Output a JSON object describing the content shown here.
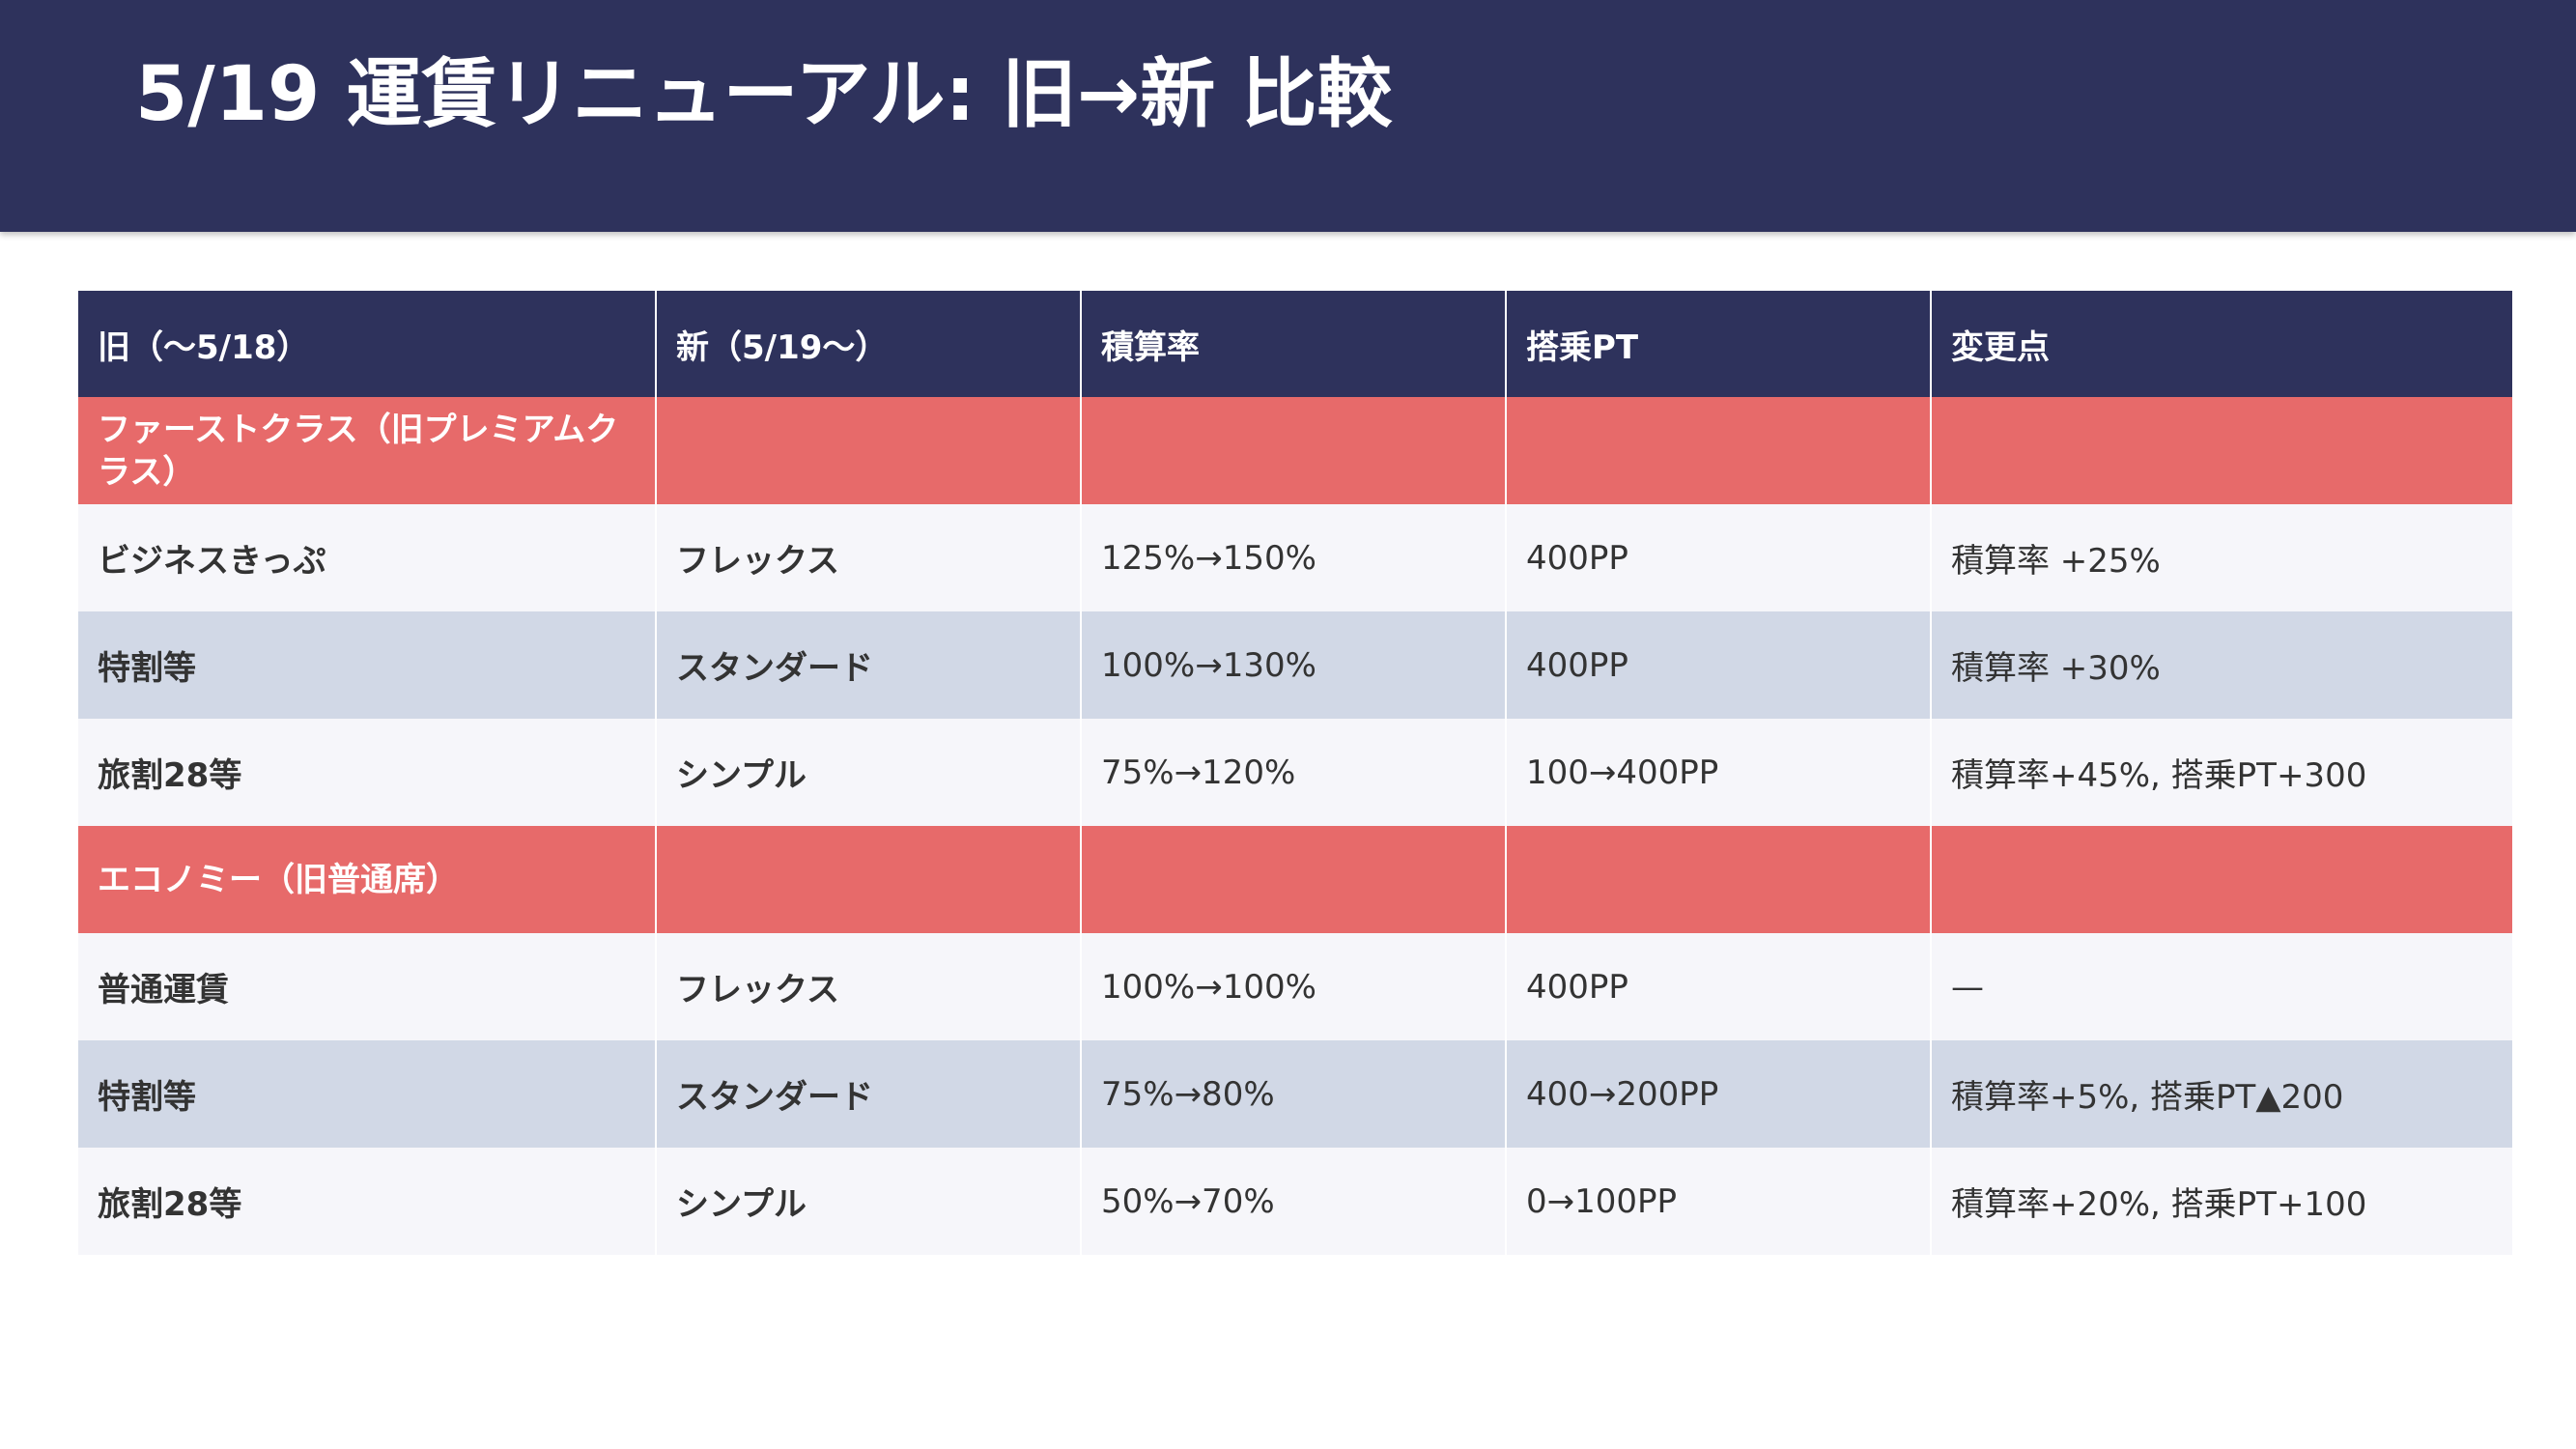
{
  "title": "5/19 運賃リニューアル: 旧→新 比較",
  "table": {
    "headers": [
      "旧（〜5/18）",
      "新（5/19〜）",
      "積算率",
      "搭乗PT",
      "変更点"
    ],
    "first_class_group": "ファーストクラス（旧プレミアムクラス）",
    "economy_group": "エコノミー（旧普通席）",
    "first_class_rows": [
      [
        "ビジネスきっぷ",
        "フレックス",
        "125%→150%",
        "400PP",
        "積算率 +25%"
      ],
      [
        "特割等",
        "スタンダード",
        "100%→130%",
        "400PP",
        "積算率 +30%"
      ],
      [
        "旅割28等",
        "シンプル",
        "75%→120%",
        "100→400PP",
        "積算率+45%, 搭乗PT+300"
      ]
    ],
    "economy_rows": [
      [
        "普通運賃",
        "フレックス",
        "100%→100%",
        "400PP",
        "—"
      ],
      [
        "特割等",
        "スタンダード",
        "75%→80%",
        "400→200PP",
        "積算率+5%, 搭乗PT▲200"
      ],
      [
        "旅割28等",
        "シンプル",
        "50%→70%",
        "0→100PP",
        "積算率+20%, 搭乗PT+100"
      ]
    ]
  },
  "colors": {
    "header_bg": "#2e325c",
    "group_row": "#e76a6a",
    "row_light": "#f6f6fa",
    "row_shade": "#d1d8e6"
  }
}
